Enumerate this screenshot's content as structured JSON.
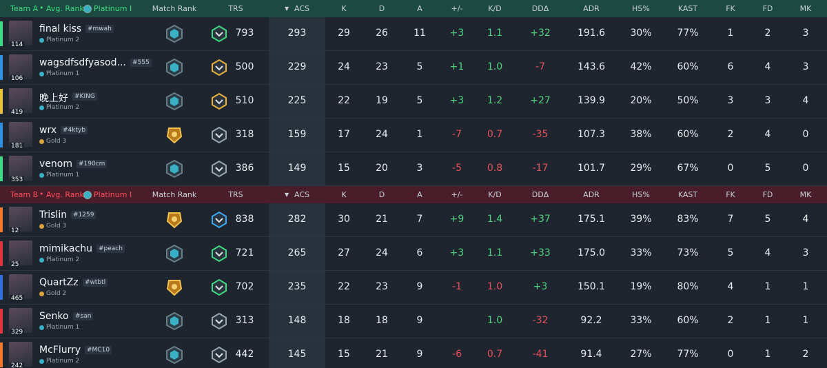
{
  "columns": [
    "Match Rank",
    "TRS",
    "ACS",
    "K",
    "D",
    "A",
    "+/-",
    "K/D",
    "DDΔ",
    "ADR",
    "HS%",
    "KAST",
    "FK",
    "FD",
    "MK"
  ],
  "teams": [
    {
      "name": "Team A",
      "avg_rank_label": "Avg. Rank:",
      "avg_rank": "Platinum I",
      "players": [
        {
          "name": "final kiss",
          "tag": "#mwah",
          "level": "114",
          "rank": "Platinum 2",
          "color": "#3ddc84",
          "trs": "793",
          "acs": "293",
          "k": "29",
          "d": "26",
          "a": "11",
          "pm": "+3",
          "kd": "1.1",
          "ddd": "+32",
          "adr": "191.6",
          "hs": "30%",
          "kast": "77%",
          "fk": "1",
          "fd": "2",
          "mk": "3"
        },
        {
          "name": "wagsdfsdfyasod...",
          "tag": "#555",
          "level": "106",
          "rank": "Platinum 1",
          "color": "#2f8fe0",
          "trs": "500",
          "acs": "229",
          "k": "24",
          "d": "23",
          "a": "5",
          "pm": "+1",
          "kd": "1.0",
          "ddd": "-7",
          "adr": "143.6",
          "hs": "42%",
          "kast": "60%",
          "fk": "6",
          "fd": "4",
          "mk": "3"
        },
        {
          "name": "晚上好",
          "tag": "#KING",
          "level": "419",
          "rank": "Platinum 2",
          "color": "#e8c23a",
          "trs": "510",
          "acs": "225",
          "k": "22",
          "d": "19",
          "a": "5",
          "pm": "+3",
          "kd": "1.2",
          "ddd": "+27",
          "adr": "139.9",
          "hs": "20%",
          "kast": "50%",
          "fk": "3",
          "fd": "3",
          "mk": "4"
        },
        {
          "name": "wrx",
          "tag": "#4ktyb",
          "level": "181",
          "rank": "Gold 3",
          "color": "#2f8fe0",
          "trs": "318",
          "acs": "159",
          "k": "17",
          "d": "24",
          "a": "1",
          "pm": "-7",
          "kd": "0.7",
          "ddd": "-35",
          "adr": "107.3",
          "hs": "38%",
          "kast": "60%",
          "fk": "2",
          "fd": "4",
          "mk": "0"
        },
        {
          "name": "venom",
          "tag": "#190cm",
          "level": "353",
          "rank": "Platinum 1",
          "color": "#3ddc84",
          "trs": "386",
          "acs": "149",
          "k": "15",
          "d": "20",
          "a": "3",
          "pm": "-5",
          "kd": "0.8",
          "ddd": "-17",
          "adr": "101.7",
          "hs": "29%",
          "kast": "67%",
          "fk": "0",
          "fd": "5",
          "mk": "0"
        }
      ]
    },
    {
      "name": "Team B",
      "avg_rank_label": "Avg. Rank:",
      "avg_rank": "Platinum I",
      "players": [
        {
          "name": "Trislin",
          "tag": "#1259",
          "level": "12",
          "rank": "Gold 3",
          "color": "#f07a2a",
          "trs": "838",
          "acs": "282",
          "k": "30",
          "d": "21",
          "a": "7",
          "pm": "+9",
          "kd": "1.4",
          "ddd": "+37",
          "adr": "175.1",
          "hs": "39%",
          "kast": "83%",
          "fk": "7",
          "fd": "5",
          "mk": "4"
        },
        {
          "name": "mimikachu",
          "tag": "#peach",
          "level": "25",
          "rank": "Platinum 2",
          "color": "#e0353f",
          "trs": "721",
          "acs": "265",
          "k": "27",
          "d": "24",
          "a": "6",
          "pm": "+3",
          "kd": "1.1",
          "ddd": "+33",
          "adr": "175.0",
          "hs": "33%",
          "kast": "73%",
          "fk": "5",
          "fd": "4",
          "mk": "3"
        },
        {
          "name": "QuartZz",
          "tag": "#wtbtl",
          "level": "465",
          "rank": "Gold 2",
          "color": "#2f6fe0",
          "trs": "702",
          "acs": "235",
          "k": "22",
          "d": "23",
          "a": "9",
          "pm": "-1",
          "kd": "1.0",
          "ddd": "+3",
          "adr": "150.1",
          "hs": "19%",
          "kast": "80%",
          "fk": "4",
          "fd": "1",
          "mk": "1"
        },
        {
          "name": "Senko",
          "tag": "#san",
          "level": "329",
          "rank": "Platinum 1",
          "color": "#e0353f",
          "trs": "313",
          "acs": "148",
          "k": "18",
          "d": "18",
          "a": "9",
          "pm": null,
          "kd": "1.0",
          "ddd": "-32",
          "adr": "92.2",
          "hs": "33%",
          "kast": "60%",
          "fk": "2",
          "fd": "1",
          "mk": "1"
        },
        {
          "name": "McFlurry",
          "tag": "#MC10",
          "level": "242",
          "rank": "Platinum 2",
          "color": "#f07a2a",
          "trs": "442",
          "acs": "145",
          "k": "15",
          "d": "21",
          "a": "9",
          "pm": "-6",
          "kd": "0.7",
          "ddd": "-41",
          "adr": "91.4",
          "hs": "27%",
          "kast": "77%",
          "fk": "0",
          "fd": "1",
          "mk": "2"
        }
      ]
    }
  ]
}
